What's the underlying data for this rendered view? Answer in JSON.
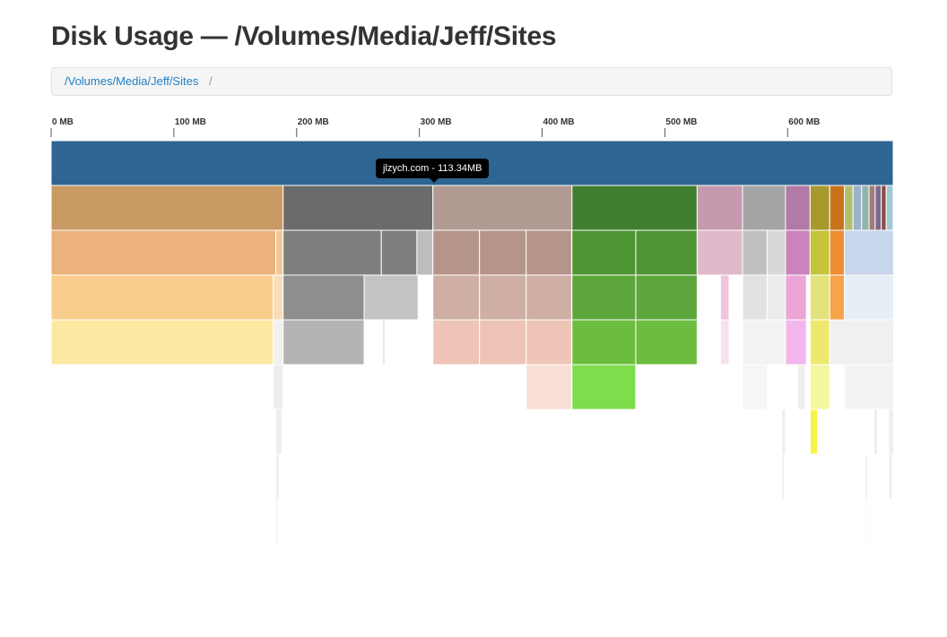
{
  "page": {
    "title": "Disk Usage — /Volumes/Media/Jeff/Sites"
  },
  "breadcrumb": {
    "path_link": "/Volumes/Media/Jeff/Sites",
    "separator": "/"
  },
  "tooltip": {
    "text": "jlzych.com - 113.34MB"
  },
  "chart_data": {
    "type": "icicle",
    "unit": "MB",
    "axis": {
      "min": 0,
      "max": 686,
      "ticks": [
        0,
        100,
        200,
        300,
        400,
        500,
        600
      ],
      "tick_labels": [
        "0 MB",
        "100 MB",
        "200 MB",
        "300 MB",
        "400 MB",
        "500 MB",
        "600 MB"
      ]
    },
    "levels": [
      [
        {
          "start": 0,
          "size": 686,
          "color": "#2e6592"
        }
      ],
      [
        {
          "start": 0,
          "size": 189,
          "color": "#c99a64"
        },
        {
          "start": 189,
          "size": 122,
          "color": "#6b6b6b"
        },
        {
          "start": 311,
          "size": 113.34,
          "color": "#b09a92"
        },
        {
          "start": 424.3,
          "size": 102,
          "color": "#417f2f"
        },
        {
          "start": 526.3,
          "size": 37,
          "color": "#c69aae"
        },
        {
          "start": 563.3,
          "size": 35,
          "color": "#a4a4a4"
        },
        {
          "start": 598.3,
          "size": 20,
          "color": "#b27aa6"
        },
        {
          "start": 618.3,
          "size": 16,
          "color": "#a6992e"
        },
        {
          "start": 634.3,
          "size": 12,
          "color": "#c8731c"
        },
        {
          "start": 646.3,
          "size": 7,
          "color": "#b3bf6c"
        },
        {
          "start": 653.3,
          "size": 7,
          "color": "#9bb1cd"
        },
        {
          "start": 660.3,
          "size": 6,
          "color": "#8fb4a8"
        },
        {
          "start": 666.3,
          "size": 5,
          "color": "#a37a7a"
        },
        {
          "start": 671.3,
          "size": 5,
          "color": "#7b6a8f"
        },
        {
          "start": 676.3,
          "size": 4,
          "color": "#8a4b3e"
        },
        {
          "start": 680.3,
          "size": 5.7,
          "color": "#a2c8d6"
        }
      ],
      [
        {
          "start": 0,
          "size": 183,
          "color": "#ebb27b"
        },
        {
          "start": 183,
          "size": 6,
          "color": "#f0c79a"
        },
        {
          "start": 189,
          "size": 80,
          "color": "#7e7e7e"
        },
        {
          "start": 269,
          "size": 29,
          "color": "#7e7e7e"
        },
        {
          "start": 298,
          "size": 13,
          "color": "#bdbdbd"
        },
        {
          "start": 311,
          "size": 38,
          "color": "#b59489"
        },
        {
          "start": 349,
          "size": 38,
          "color": "#b59489"
        },
        {
          "start": 387,
          "size": 37,
          "color": "#b59489"
        },
        {
          "start": 424.3,
          "size": 52,
          "color": "#4e9533"
        },
        {
          "start": 476.3,
          "size": 50,
          "color": "#4e9533"
        },
        {
          "start": 526.3,
          "size": 37,
          "color": "#e2b9cb"
        },
        {
          "start": 563.3,
          "size": 20,
          "color": "#c0c0c0"
        },
        {
          "start": 583.3,
          "size": 15,
          "color": "#d8d8d8"
        },
        {
          "start": 598.3,
          "size": 20,
          "color": "#cb83bd"
        },
        {
          "start": 618.3,
          "size": 16,
          "color": "#c7c33a"
        },
        {
          "start": 634.3,
          "size": 12,
          "color": "#ee8d2f"
        },
        {
          "start": 646.3,
          "size": 40,
          "color": "#c7d6ea"
        }
      ],
      [
        {
          "start": 0,
          "size": 181,
          "color": "#f8cd8b"
        },
        {
          "start": 181,
          "size": 8,
          "color": "#f6dcb8"
        },
        {
          "start": 189,
          "size": 66,
          "color": "#8e8e8e"
        },
        {
          "start": 255,
          "size": 44,
          "color": "#c4c4c4"
        },
        {
          "start": 311,
          "size": 38,
          "color": "#cfaea3"
        },
        {
          "start": 349,
          "size": 38,
          "color": "#cfaea3"
        },
        {
          "start": 387,
          "size": 37,
          "color": "#cfaea3"
        },
        {
          "start": 424.3,
          "size": 52,
          "color": "#5ca63b"
        },
        {
          "start": 476.3,
          "size": 50,
          "color": "#5ca63b"
        },
        {
          "start": 545.3,
          "size": 7,
          "color": "#f0c6df"
        },
        {
          "start": 563.3,
          "size": 20,
          "color": "#e2e2e2"
        },
        {
          "start": 583.3,
          "size": 15,
          "color": "#ececec"
        },
        {
          "start": 598.3,
          "size": 17,
          "color": "#eba6d6"
        },
        {
          "start": 618.3,
          "size": 16,
          "color": "#e4e27d"
        },
        {
          "start": 634.3,
          "size": 12,
          "color": "#f5a44b"
        },
        {
          "start": 646.3,
          "size": 40,
          "color": "#e6eef6"
        }
      ],
      [
        {
          "start": 0,
          "size": 181,
          "color": "#fde8a2"
        },
        {
          "start": 181,
          "size": 8,
          "color": "#f2f2f2"
        },
        {
          "start": 189,
          "size": 66,
          "color": "#b4b4b4"
        },
        {
          "start": 270,
          "size": 2,
          "color": "#e6e6e6"
        },
        {
          "start": 311,
          "size": 38,
          "color": "#eec4b6"
        },
        {
          "start": 349,
          "size": 38,
          "color": "#eec4b6"
        },
        {
          "start": 387,
          "size": 37,
          "color": "#eec4b6"
        },
        {
          "start": 424.3,
          "size": 52,
          "color": "#6cbd3f"
        },
        {
          "start": 476.3,
          "size": 50,
          "color": "#6cbd3f"
        },
        {
          "start": 545.3,
          "size": 7,
          "color": "#f6e1ee"
        },
        {
          "start": 563.3,
          "size": 35,
          "color": "#f3f3f3"
        },
        {
          "start": 598.3,
          "size": 17,
          "color": "#f2b6ed"
        },
        {
          "start": 618.3,
          "size": 16,
          "color": "#eee96e"
        },
        {
          "start": 634.3,
          "size": 52,
          "color": "#f0f0f0"
        }
      ],
      [
        {
          "start": 181,
          "size": 8,
          "color": "#eeeeee"
        },
        {
          "start": 387,
          "size": 37,
          "color": "#f8dfd6"
        },
        {
          "start": 424.3,
          "size": 52,
          "color": "#7fdd4d"
        },
        {
          "start": 563.3,
          "size": 20,
          "color": "#f6f6f6"
        },
        {
          "start": 608.3,
          "size": 6,
          "color": "#eeeeee"
        },
        {
          "start": 618.3,
          "size": 16,
          "color": "#f4f6a0"
        },
        {
          "start": 646.3,
          "size": 40,
          "color": "#f3f3f3"
        }
      ],
      [
        {
          "start": 183,
          "size": 5,
          "color": "#eeeeee"
        },
        {
          "start": 595.3,
          "size": 3,
          "color": "#eeeeee"
        },
        {
          "start": 618.3,
          "size": 6,
          "color": "#f6f44a"
        },
        {
          "start": 670.3,
          "size": 3,
          "color": "#eeeeee"
        },
        {
          "start": 682.3,
          "size": 4,
          "color": "#eeeeee"
        }
      ],
      [
        {
          "start": 183,
          "size": 3,
          "color": "#f0f0f0"
        },
        {
          "start": 595.3,
          "size": 2,
          "color": "#f0f0f0"
        },
        {
          "start": 663.3,
          "size": 2,
          "color": "#f0f0f0"
        },
        {
          "start": 682.3,
          "size": 3,
          "color": "#f0f0f0"
        }
      ],
      [
        {
          "start": 183,
          "size": 2,
          "color": "#f2f2f2"
        },
        {
          "start": 663.3,
          "size": 1,
          "color": "#f2f2f2"
        }
      ]
    ]
  }
}
